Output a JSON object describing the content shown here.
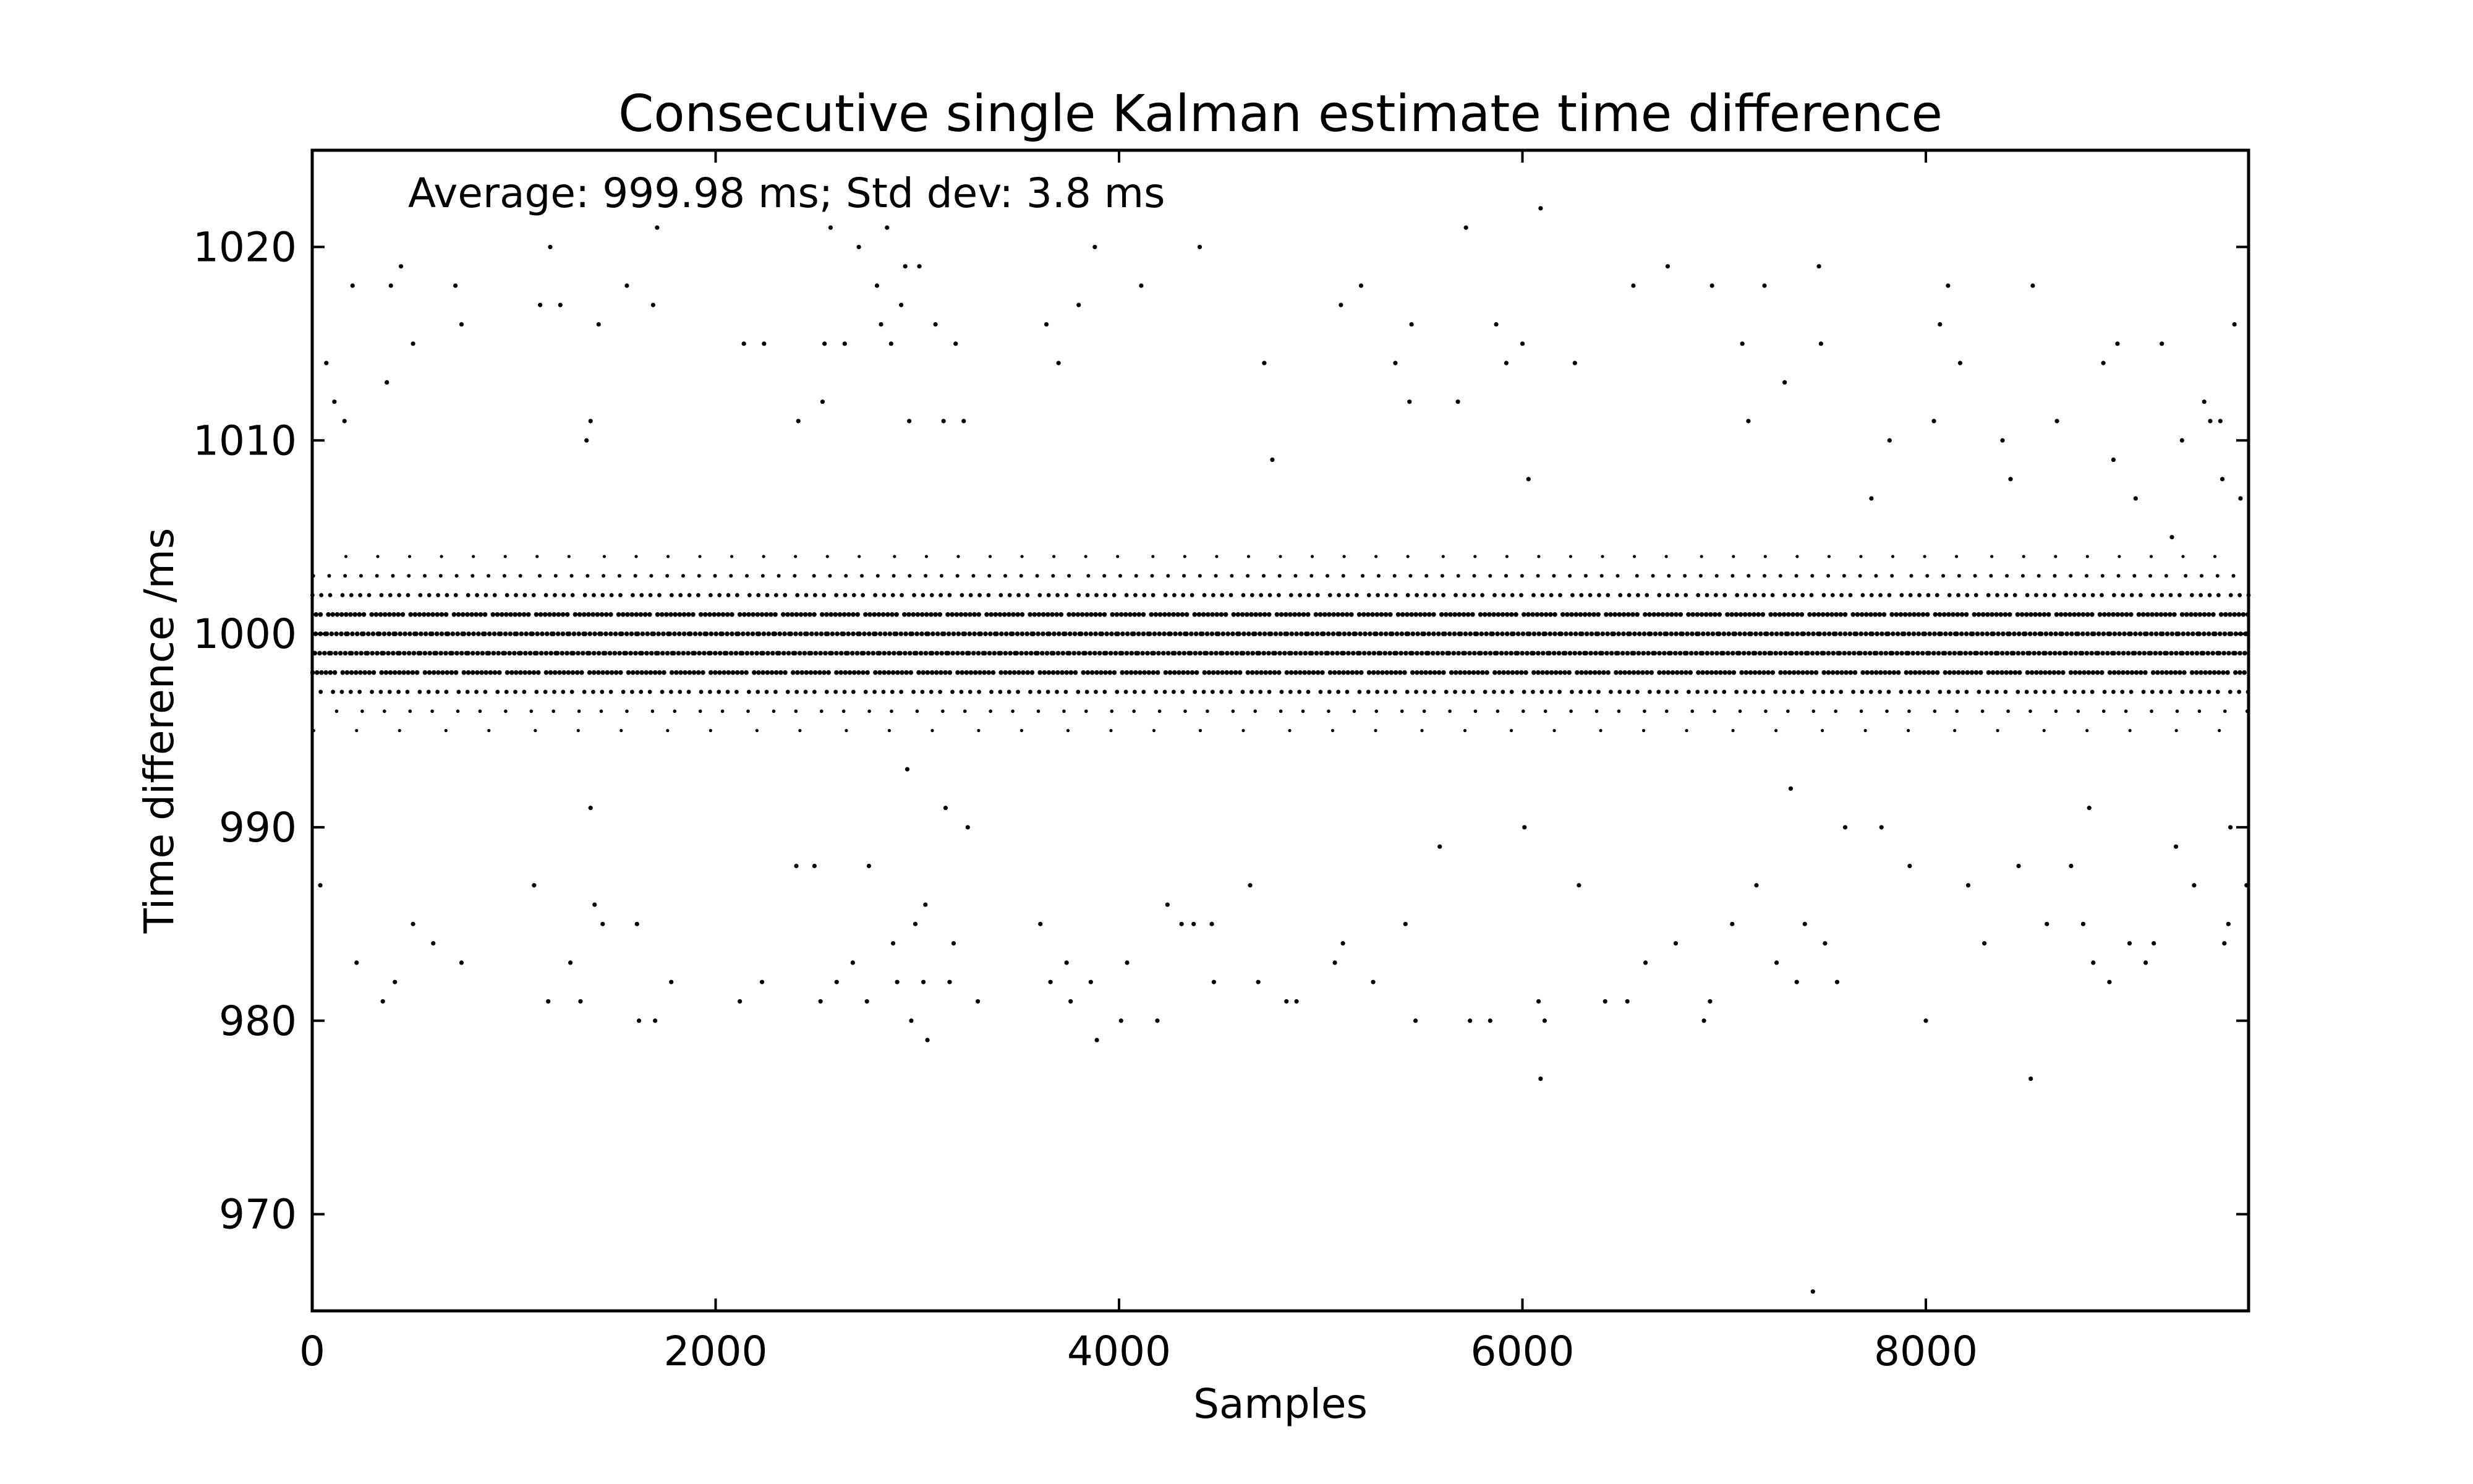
{
  "chart_data": {
    "type": "scatter",
    "title": "Consecutive single Kalman estimate time difference",
    "xlabel": "Samples",
    "ylabel": "Time difference /ms",
    "annotation": "Average: 999.98 ms;  Std dev: 3.8 ms",
    "xlim": [
      0,
      9600
    ],
    "ylim": [
      965,
      1025
    ],
    "xticks": [
      0,
      2000,
      4000,
      6000,
      8000
    ],
    "yticks": [
      970,
      980,
      990,
      1000,
      1010,
      1020
    ],
    "grid": false,
    "marker_color": "#000000",
    "series": [
      {
        "points": [
          [
            40,
            987
          ],
          [
            70,
            1014
          ],
          [
            110,
            1012
          ],
          [
            160,
            1011
          ],
          [
            200,
            1018
          ],
          [
            220,
            983
          ],
          [
            350,
            981
          ],
          [
            370,
            1013
          ],
          [
            390,
            1018
          ],
          [
            410,
            982
          ],
          [
            440,
            1019
          ],
          [
            500,
            985
          ],
          [
            500,
            1015
          ],
          [
            600,
            984
          ],
          [
            710,
            1018
          ],
          [
            740,
            983
          ],
          [
            740,
            1016
          ],
          [
            1100,
            987
          ],
          [
            1130,
            1017
          ],
          [
            1170,
            981
          ],
          [
            1180,
            1020
          ],
          [
            1230,
            1017
          ],
          [
            1280,
            983
          ],
          [
            1330,
            981
          ],
          [
            1360,
            1010
          ],
          [
            1380,
            1011
          ],
          [
            1380,
            991
          ],
          [
            1400,
            986
          ],
          [
            1420,
            1016
          ],
          [
            1440,
            985
          ],
          [
            1560,
            1018
          ],
          [
            1610,
            985
          ],
          [
            1620,
            980
          ],
          [
            1690,
            1017
          ],
          [
            1700,
            980
          ],
          [
            1710,
            1021
          ],
          [
            1780,
            982
          ],
          [
            2120,
            981
          ],
          [
            2140,
            1015
          ],
          [
            2230,
            982
          ],
          [
            2240,
            1015
          ],
          [
            2400,
            988
          ],
          [
            2410,
            1011
          ],
          [
            2490,
            988
          ],
          [
            2520,
            981
          ],
          [
            2530,
            1012
          ],
          [
            2540,
            1015
          ],
          [
            2570,
            1021
          ],
          [
            2600,
            982
          ],
          [
            2640,
            1015
          ],
          [
            2680,
            983
          ],
          [
            2710,
            1020
          ],
          [
            2750,
            981
          ],
          [
            2760,
            988
          ],
          [
            2800,
            1018
          ],
          [
            2820,
            1016
          ],
          [
            2850,
            1021
          ],
          [
            2870,
            1015
          ],
          [
            2880,
            984
          ],
          [
            2900,
            982
          ],
          [
            2920,
            1017
          ],
          [
            2940,
            1019
          ],
          [
            2950,
            993
          ],
          [
            2960,
            1011
          ],
          [
            2970,
            980
          ],
          [
            2990,
            985
          ],
          [
            3010,
            1019
          ],
          [
            3030,
            982
          ],
          [
            3040,
            986
          ],
          [
            3050,
            979
          ],
          [
            3090,
            1016
          ],
          [
            3130,
            1011
          ],
          [
            3140,
            991
          ],
          [
            3160,
            982
          ],
          [
            3180,
            984
          ],
          [
            3190,
            1015
          ],
          [
            3230,
            1011
          ],
          [
            3250,
            990
          ],
          [
            3300,
            981
          ],
          [
            3610,
            985
          ],
          [
            3640,
            1016
          ],
          [
            3660,
            982
          ],
          [
            3700,
            1014
          ],
          [
            3740,
            983
          ],
          [
            3760,
            981
          ],
          [
            3800,
            1017
          ],
          [
            3860,
            982
          ],
          [
            3880,
            1020
          ],
          [
            3890,
            979
          ],
          [
            4010,
            980
          ],
          [
            4040,
            983
          ],
          [
            4110,
            1018
          ],
          [
            4190,
            980
          ],
          [
            4240,
            986
          ],
          [
            4310,
            985
          ],
          [
            4370,
            985
          ],
          [
            4400,
            1020
          ],
          [
            4460,
            985
          ],
          [
            4470,
            982
          ],
          [
            4650,
            987
          ],
          [
            4690,
            982
          ],
          [
            4720,
            1014
          ],
          [
            4760,
            1009
          ],
          [
            4830,
            981
          ],
          [
            4880,
            981
          ],
          [
            5070,
            983
          ],
          [
            5100,
            1017
          ],
          [
            5110,
            984
          ],
          [
            5200,
            1018
          ],
          [
            5260,
            982
          ],
          [
            5370,
            1014
          ],
          [
            5420,
            985
          ],
          [
            5440,
            1012
          ],
          [
            5450,
            1016
          ],
          [
            5470,
            980
          ],
          [
            5590,
            989
          ],
          [
            5680,
            1012
          ],
          [
            5720,
            1021
          ],
          [
            5740,
            980
          ],
          [
            5840,
            980
          ],
          [
            5870,
            1016
          ],
          [
            5920,
            1014
          ],
          [
            6000,
            1015
          ],
          [
            6010,
            990
          ],
          [
            6030,
            1008
          ],
          [
            6080,
            981
          ],
          [
            6090,
            977
          ],
          [
            6090,
            1022
          ],
          [
            6110,
            980
          ],
          [
            6260,
            1014
          ],
          [
            6280,
            987
          ],
          [
            6410,
            981
          ],
          [
            6520,
            981
          ],
          [
            6550,
            1018
          ],
          [
            6610,
            983
          ],
          [
            6720,
            1019
          ],
          [
            6760,
            984
          ],
          [
            6900,
            980
          ],
          [
            6930,
            981
          ],
          [
            6940,
            1018
          ],
          [
            7040,
            985
          ],
          [
            7090,
            1015
          ],
          [
            7120,
            1011
          ],
          [
            7160,
            987
          ],
          [
            7200,
            1018
          ],
          [
            7260,
            983
          ],
          [
            7300,
            1013
          ],
          [
            7330,
            992
          ],
          [
            7360,
            982
          ],
          [
            7400,
            985
          ],
          [
            7440,
            966
          ],
          [
            7470,
            1019
          ],
          [
            7480,
            1015
          ],
          [
            7500,
            984
          ],
          [
            7560,
            982
          ],
          [
            7600,
            990
          ],
          [
            7730,
            1007
          ],
          [
            7780,
            990
          ],
          [
            7820,
            1010
          ],
          [
            7920,
            988
          ],
          [
            8000,
            980
          ],
          [
            8040,
            1011
          ],
          [
            8070,
            1016
          ],
          [
            8110,
            1018
          ],
          [
            8170,
            1014
          ],
          [
            8210,
            987
          ],
          [
            8290,
            984
          ],
          [
            8380,
            1010
          ],
          [
            8420,
            1008
          ],
          [
            8460,
            988
          ],
          [
            8520,
            977
          ],
          [
            8530,
            1018
          ],
          [
            8600,
            985
          ],
          [
            8650,
            1011
          ],
          [
            8720,
            988
          ],
          [
            8780,
            985
          ],
          [
            8810,
            991
          ],
          [
            8830,
            983
          ],
          [
            8880,
            1014
          ],
          [
            8910,
            982
          ],
          [
            8930,
            1009
          ],
          [
            8950,
            1015
          ],
          [
            9010,
            984
          ],
          [
            9040,
            1007
          ],
          [
            9090,
            983
          ],
          [
            9130,
            984
          ],
          [
            9170,
            1015
          ],
          [
            9220,
            1005
          ],
          [
            9240,
            989
          ],
          [
            9270,
            1010
          ],
          [
            9330,
            987
          ],
          [
            9380,
            1012
          ],
          [
            9410,
            1011
          ],
          [
            9460,
            1011
          ],
          [
            9470,
            1008
          ],
          [
            9480,
            984
          ],
          [
            9500,
            985
          ],
          [
            9510,
            990
          ],
          [
            9530,
            1016
          ],
          [
            9560,
            1007
          ],
          [
            9590,
            987
          ]
        ]
      }
    ]
  }
}
